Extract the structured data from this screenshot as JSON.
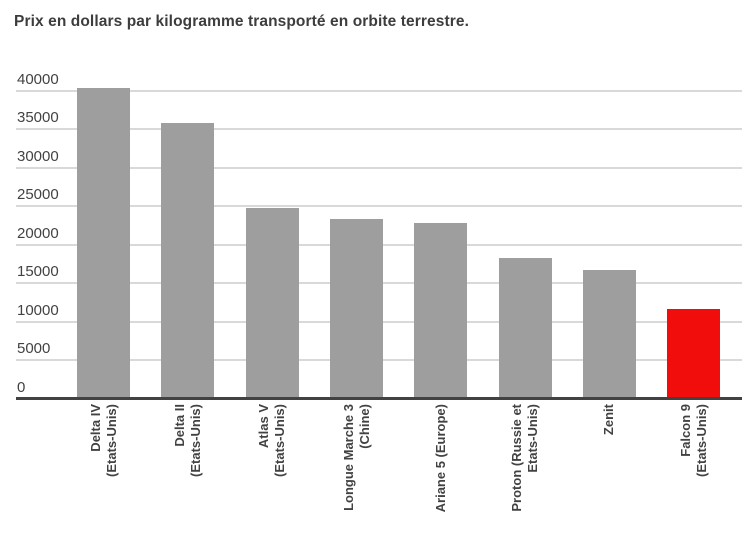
{
  "chart_data": {
    "type": "bar",
    "title": "Prix en dollars par kilogramme transporté en orbite terrestre.",
    "xlabel": "",
    "ylabel": "",
    "categories": [
      "Delta IV (Etats-Unis)",
      "Delta II (Etats-Unis)",
      "Atlas V (Etats-Unis)",
      "Longue Marche 3 (Chine)",
      "Ariane 5 (Europe)",
      "Proton (Russie et Etats-Unis)",
      "Zenit",
      "Falcon 9 (Etats-Unis)"
    ],
    "category_label_lines": [
      [
        "Delta IV",
        "(Etats-Unis)"
      ],
      [
        "Delta II",
        "(Etats-Unis)"
      ],
      [
        "Atlas V",
        "(Etats-Unis)"
      ],
      [
        "Longue Marche 3",
        "(Chine)"
      ],
      [
        "Ariane 5 (Europe)"
      ],
      [
        "Proton (Russie et",
        "Etats-Unis)"
      ],
      [
        "Zenit"
      ],
      [
        "Falcon 9",
        "(Etats-Unis)"
      ]
    ],
    "values": [
      40400,
      35900,
      24800,
      23300,
      22800,
      18300,
      16700,
      11700
    ],
    "highlight_index": 7,
    "yticks": [
      0,
      5000,
      10000,
      15000,
      20000,
      25000,
      30000,
      35000,
      40000
    ],
    "ylim": [
      0,
      40000
    ],
    "grid": true,
    "legend": null,
    "colors": {
      "bar_default": "#9e9e9e",
      "bar_highlight": "#f20d0d",
      "gridline": "#d9d9d9",
      "axis": "#424242",
      "title_text": "#3d3d3d",
      "label_text": "#424242"
    }
  }
}
